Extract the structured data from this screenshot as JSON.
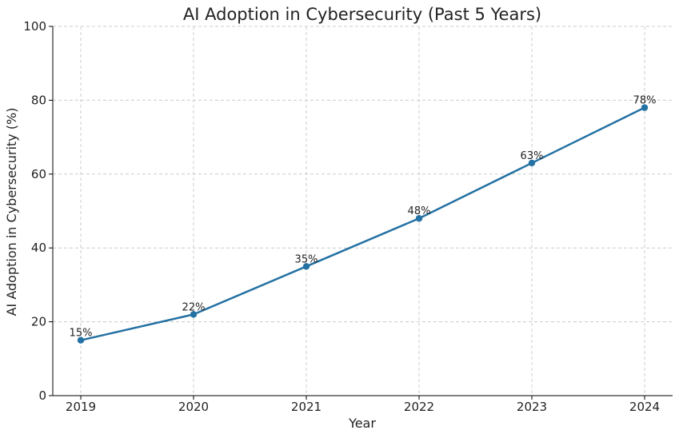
{
  "chart_data": {
    "type": "line",
    "title": "AI Adoption in Cybersecurity (Past 5 Years)",
    "xlabel": "Year",
    "ylabel": "AI Adoption in Cybersecurity (%)",
    "x": [
      "2019",
      "2020",
      "2021",
      "2022",
      "2023",
      "2024"
    ],
    "series": [
      {
        "values": [
          15,
          22,
          35,
          48,
          63,
          78
        ],
        "color": "#2471a3"
      }
    ],
    "data_labels": [
      "15%",
      "22%",
      "35%",
      "48%",
      "63%",
      "78%"
    ],
    "ylim": [
      0,
      100
    ],
    "yticks": [
      "0",
      "20",
      "40",
      "60",
      "80",
      "100"
    ],
    "grid": true,
    "grid_style": "dashed"
  }
}
